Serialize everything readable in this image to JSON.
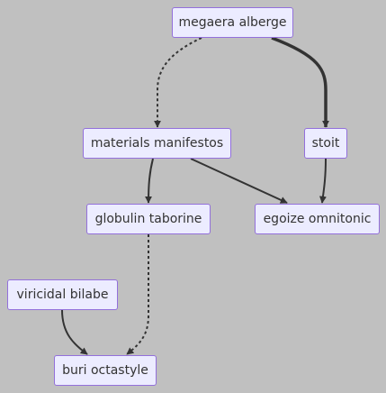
{
  "nodes": {
    "megaera": "megaera alberge",
    "materials": "materials manifestos",
    "stoit": "stoit",
    "globulin": "globulin taborine",
    "egoize": "egoize omnitonic",
    "viricidal": "viricidal bilabe",
    "buri": "buri octastyle"
  },
  "edges": [
    {
      "from": "megaera alberge",
      "to": "materials manifestos",
      "style": "dotted"
    },
    {
      "from": "megaera alberge",
      "to": "stoit",
      "style": "thick"
    },
    {
      "from": "materials manifestos",
      "to": "globulin taborine",
      "style": "solid"
    },
    {
      "from": "materials manifestos",
      "to": "egoize omnitonic",
      "style": "solid"
    },
    {
      "from": "stoit",
      "to": "egoize omnitonic",
      "style": "solid"
    },
    {
      "from": "globulin taborine",
      "to": "buri octastyle",
      "style": "dotted"
    },
    {
      "from": "viricidal bilabe",
      "to": "buri octastyle",
      "style": "solid"
    }
  ],
  "colors": {
    "background": "#c0c0c0",
    "node_fill": "#ececff",
    "node_border": "#9370db",
    "edge": "#333333"
  }
}
